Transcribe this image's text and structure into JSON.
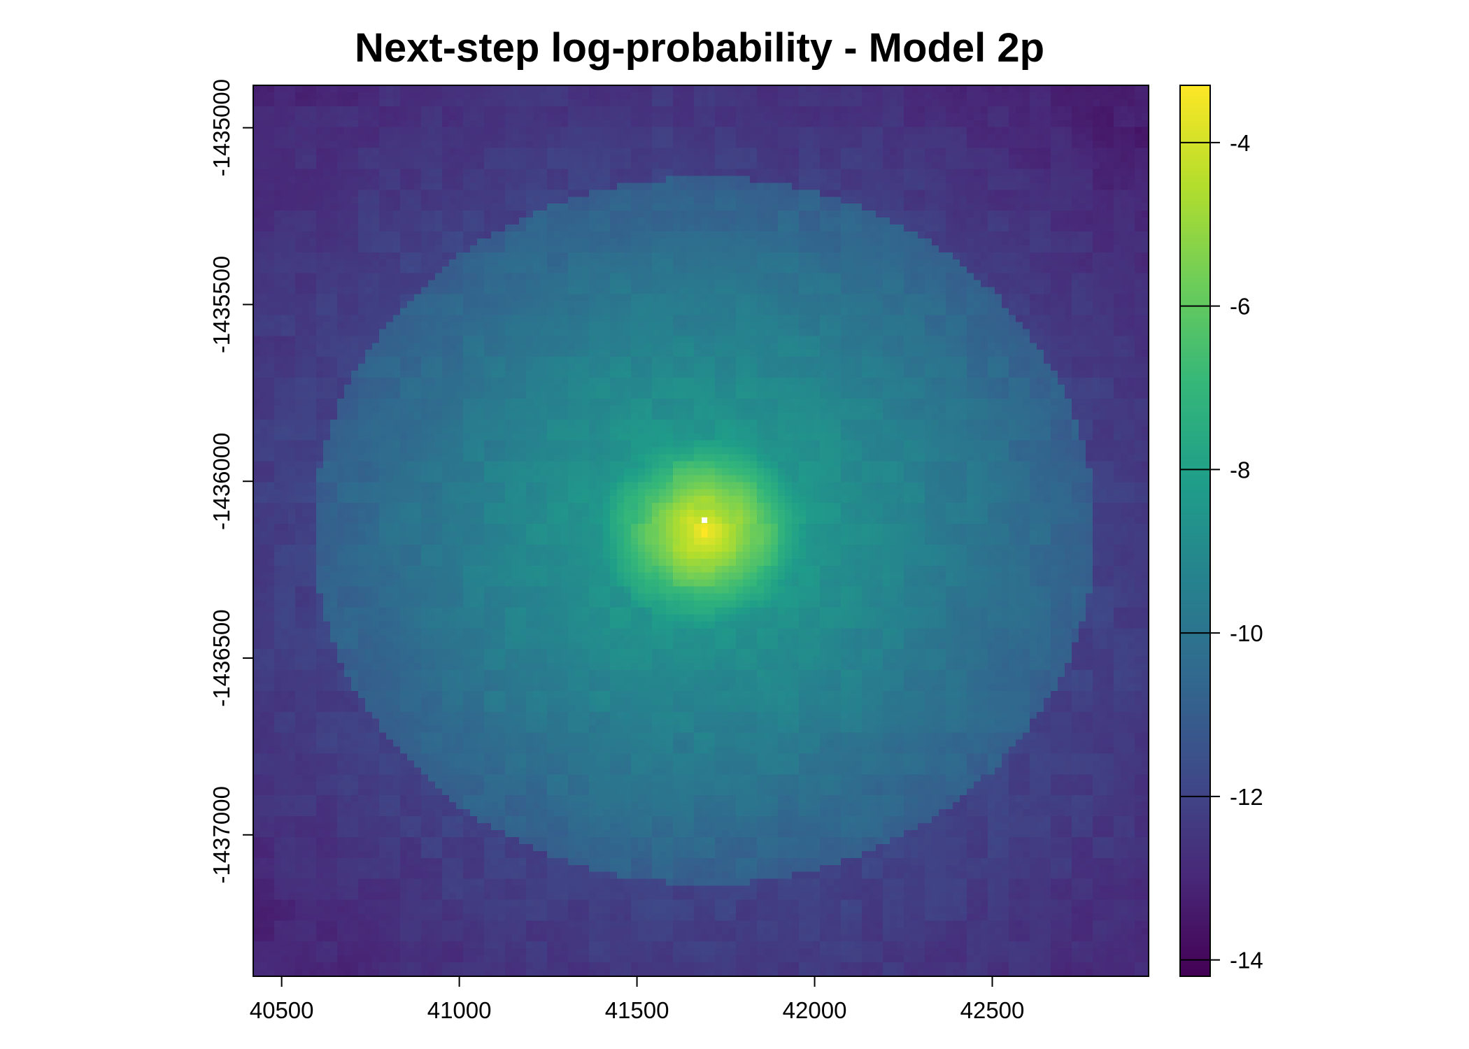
{
  "chart_data": {
    "type": "heatmap",
    "title": "Next-step log-probability - Model 2p",
    "xlabel": "",
    "ylabel": "",
    "x_range": [
      40420,
      42940
    ],
    "y_range": [
      -1437400,
      -1434880
    ],
    "x_ticks": [
      40500,
      41000,
      41500,
      42000,
      42500
    ],
    "x_tick_labels": [
      "40500",
      "41000",
      "41500",
      "42000",
      "42500"
    ],
    "y_ticks": [
      -1435000,
      -1435500,
      -1436000,
      -1436500,
      -1437000
    ],
    "y_tick_labels": [
      "-1435000",
      "-1435500",
      "-1436000",
      "-1436500",
      "-1437000"
    ],
    "colorbar": {
      "range": [
        -14.2,
        -3.3
      ],
      "ticks": [
        -4,
        -6,
        -8,
        -10,
        -12,
        -14
      ],
      "tick_labels": [
        "-4",
        "-6",
        "-8",
        "-10",
        "-12",
        "-14"
      ],
      "colormap": "viridis"
    },
    "peak": {
      "x": 41690,
      "y": -1436140,
      "value": -3.3
    },
    "missing_cell": {
      "x": 41690,
      "y": -1436110,
      "color": "#ffffff"
    },
    "surface": {
      "description_values": "log-probability decreasing radially from peak; approx -3.5 at peak, -8 to -9 within ~250 m, -10 to -11 at ~700 m, -12 to -13.5 near corners",
      "corner_values": {
        "top_left": -13.0,
        "top_right": -13.8,
        "bottom_left": -13.3,
        "bottom_right": -12.8
      }
    },
    "legend_placement": "right",
    "grid": false
  }
}
